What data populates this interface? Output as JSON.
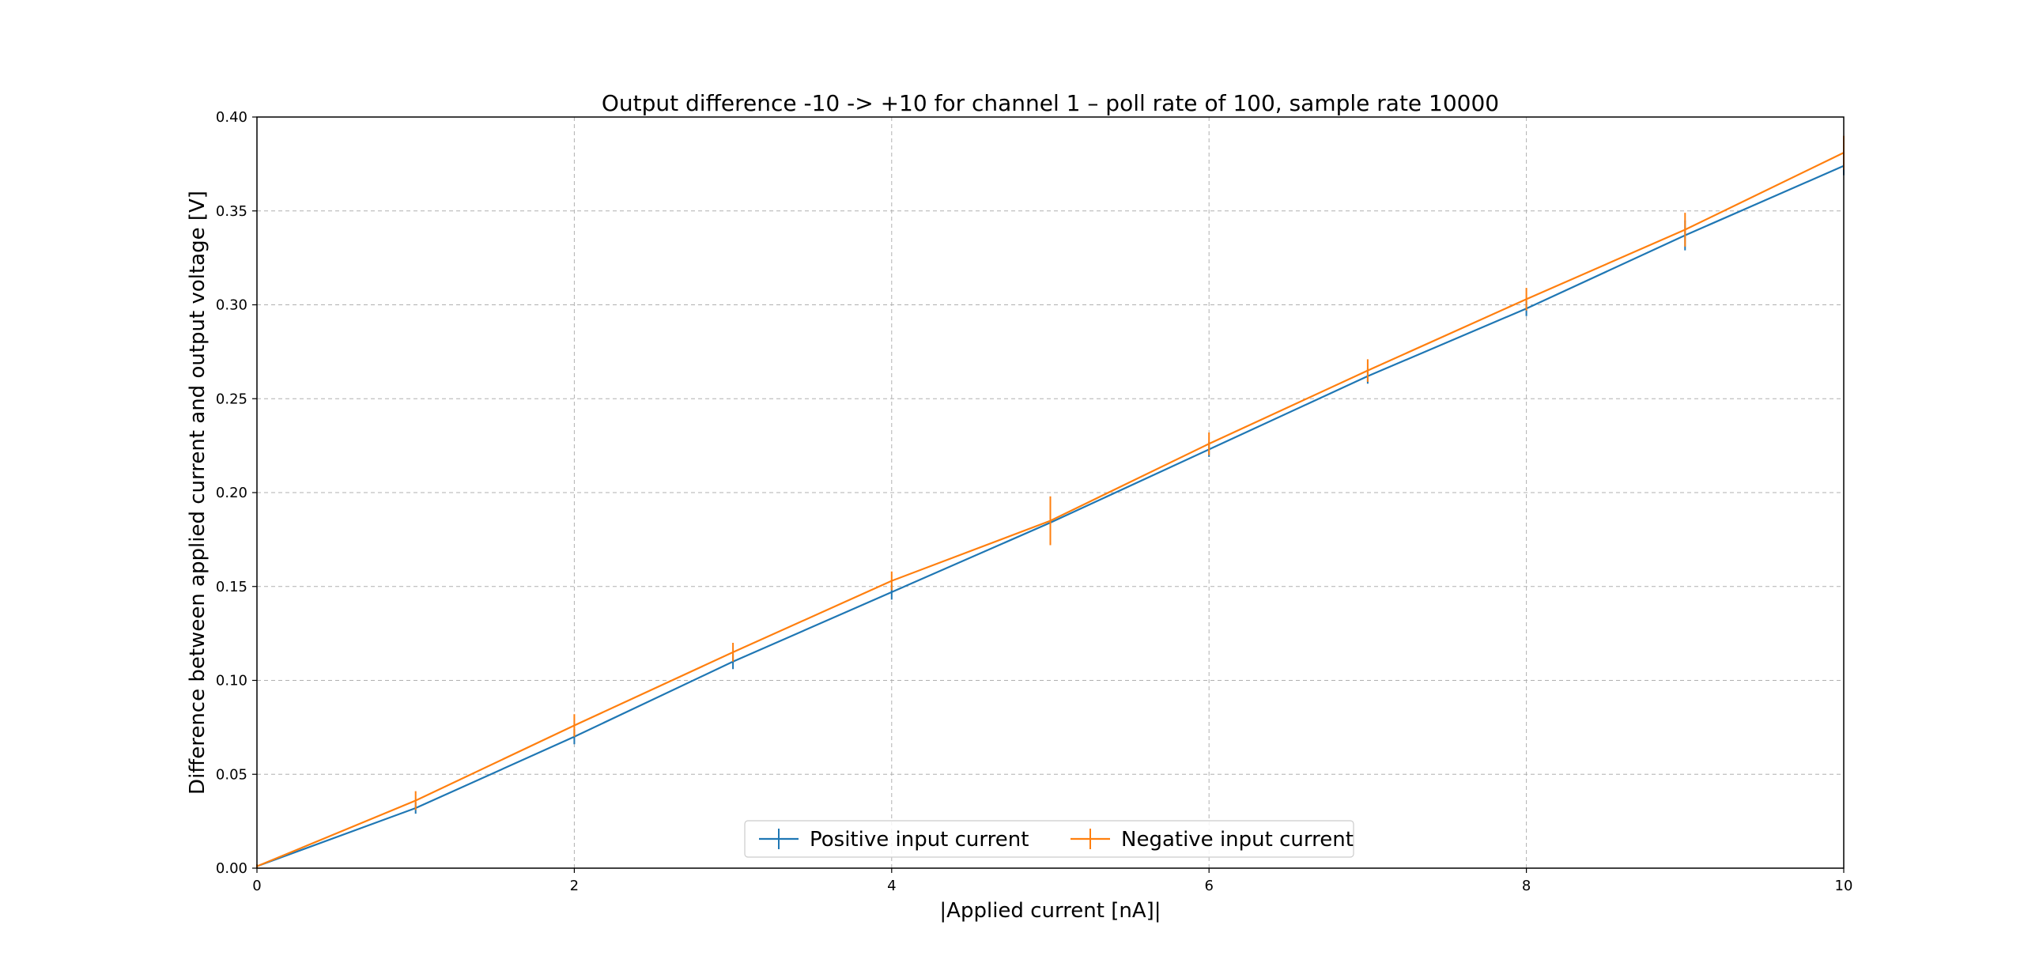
{
  "chart_data": {
    "type": "line",
    "title": "Output difference -10 -> +10 for channel 1 – poll rate of 100, sample rate 10000",
    "xlabel": "|Applied current [nA]|",
    "ylabel": "Difference between applied current and output voltage [V]",
    "xlim": [
      0,
      10
    ],
    "ylim": [
      0,
      0.4
    ],
    "x_ticks": [
      0,
      2,
      4,
      6,
      8,
      10
    ],
    "x_tick_labels": [
      "0",
      "2",
      "4",
      "6",
      "8",
      "10"
    ],
    "y_ticks": [
      0,
      0.05,
      0.1,
      0.15,
      0.2,
      0.25,
      0.3,
      0.35,
      0.4
    ],
    "y_tick_labels": [
      "0.00",
      "0.05",
      "0.10",
      "0.15",
      "0.20",
      "0.25",
      "0.30",
      "0.35",
      "0.40"
    ],
    "grid": true,
    "legend_placement": "lower center",
    "x": [
      0,
      1,
      2,
      3,
      4,
      5,
      6,
      7,
      8,
      9,
      10
    ],
    "series": [
      {
        "name": "Positive input current",
        "color": "#1f77b4",
        "values": [
          0.001,
          0.032,
          0.07,
          0.11,
          0.147,
          0.184,
          0.223,
          0.262,
          0.298,
          0.337,
          0.374
        ],
        "yerr": [
          0.001,
          0.003,
          0.004,
          0.004,
          0.004,
          0.004,
          0.004,
          0.004,
          0.004,
          0.008,
          0.005
        ]
      },
      {
        "name": "Negative input current",
        "color": "#ff7f0e",
        "values": [
          0.001,
          0.036,
          0.076,
          0.115,
          0.153,
          0.185,
          0.226,
          0.265,
          0.303,
          0.34,
          0.381
        ],
        "yerr": [
          0.001,
          0.005,
          0.006,
          0.005,
          0.005,
          0.013,
          0.006,
          0.006,
          0.006,
          0.009,
          0.009
        ]
      }
    ]
  }
}
